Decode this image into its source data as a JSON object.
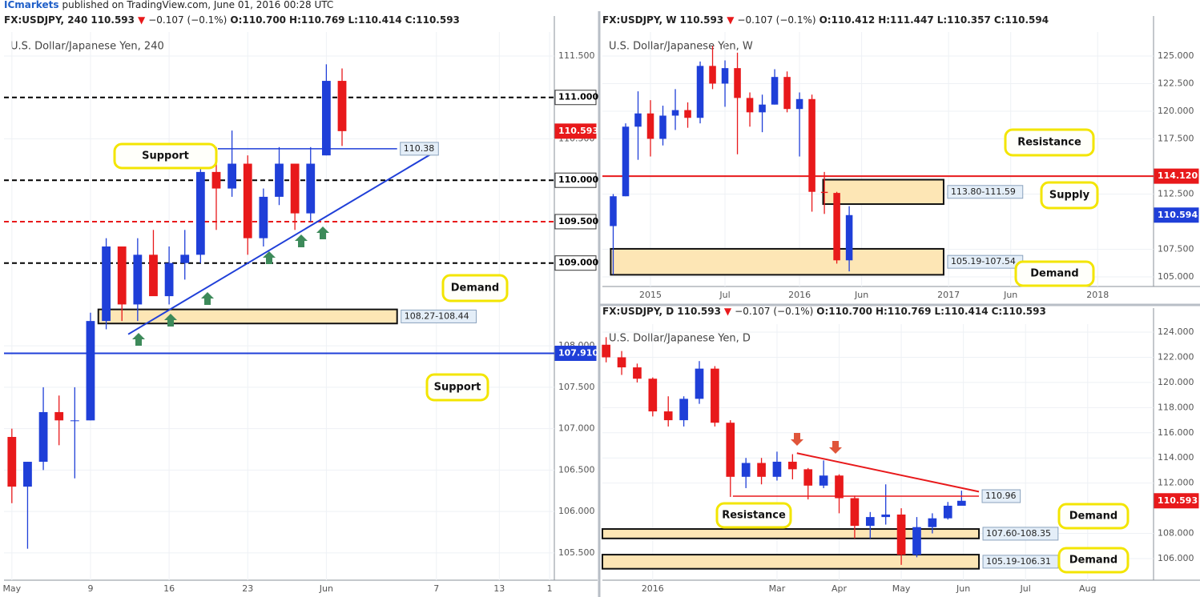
{
  "header": {
    "publisher": "ICmarkets",
    "published": "published on TradingView.com, June 01, 2016 00:28 UTC"
  },
  "chart_data": [
    {
      "type": "candlestick",
      "title": "U.S. Dollar/Japanese Yen, 240",
      "info": {
        "symbol": "FX:USDJPY, 240",
        "price": "110.593",
        "arrow": "▼",
        "change": "−0.107 (−0.1%)",
        "ohlc": [
          "O:110.700",
          "H:110.769",
          "L:110.414",
          "C:110.593"
        ]
      },
      "up_color": "#1f3fd8",
      "down_color": "#e8191b",
      "xlim": [
        -0.5,
        34.5
      ],
      "ylim": [
        105.17,
        111.79
      ],
      "xticks": [
        {
          "value": 0,
          "label": "May"
        },
        {
          "value": 5,
          "label": "9"
        },
        {
          "value": 10,
          "label": "16"
        },
        {
          "value": 15,
          "label": "23"
        },
        {
          "value": 20,
          "label": "Jun"
        },
        {
          "value": 27,
          "label": "7"
        },
        {
          "value": 31,
          "label": "13"
        },
        {
          "value": 34.2,
          "label": "1"
        }
      ],
      "yticks": [
        {
          "value": 111.5,
          "label": "111.500"
        },
        {
          "value": 110.5,
          "label": "110.500"
        },
        {
          "value": 108,
          "label": "108.000"
        },
        {
          "value": 107.5,
          "label": "107.500"
        },
        {
          "value": 107,
          "label": "107.000"
        },
        {
          "value": 106.5,
          "label": "106.500"
        },
        {
          "value": 106,
          "label": "106.000"
        },
        {
          "value": 105.5,
          "label": "105.500"
        }
      ],
      "grid": true,
      "candles": {
        "x": [
          0,
          1,
          2,
          3,
          4,
          5,
          6,
          7,
          8,
          9,
          10,
          11,
          12,
          13,
          14,
          15,
          16,
          17,
          18,
          19,
          20,
          21
        ],
        "open": [
          106.9,
          106.3,
          106.6,
          107.2,
          107.1,
          107.1,
          108.3,
          109.2,
          108.5,
          109.1,
          108.6,
          109.0,
          109.1,
          110.1,
          109.9,
          110.2,
          109.3,
          109.8,
          110.2,
          109.6,
          110.3,
          111.2
        ],
        "high": [
          107.0,
          106.6,
          107.5,
          107.4,
          107.5,
          108.4,
          109.3,
          109.2,
          109.3,
          109.4,
          109.2,
          109.4,
          110.3,
          110.4,
          110.6,
          110.3,
          109.9,
          110.4,
          110.2,
          110.4,
          111.4,
          111.35
        ],
        "low": [
          106.1,
          105.55,
          106.5,
          106.8,
          106.4,
          107.1,
          108.2,
          108.3,
          108.3,
          108.7,
          108.5,
          108.8,
          109.0,
          109.4,
          109.8,
          109.1,
          109.2,
          109.7,
          109.4,
          109.5,
          110.3,
          110.414
        ],
        "close": [
          106.3,
          106.6,
          107.2,
          107.1,
          107.1,
          108.3,
          109.2,
          108.5,
          109.1,
          108.6,
          109.0,
          109.1,
          110.1,
          109.9,
          110.2,
          109.3,
          109.8,
          110.2,
          109.6,
          110.2,
          111.2,
          110.593
        ]
      },
      "levels": [
        {
          "value": 111,
          "label": "111.000",
          "color": "#000000",
          "style": "dashed",
          "label_bg": "#ffffff",
          "label_color": "#000000"
        },
        {
          "value": 110.593,
          "label": "110.593",
          "color": "#e8191b",
          "style": "none",
          "label_bg": "#e8191b",
          "label_color": "#ffffff"
        },
        {
          "value": 110,
          "label": "110.000",
          "color": "#000000",
          "style": "dashed",
          "label_bg": "#ffffff",
          "label_color": "#000000"
        },
        {
          "value": 109.5,
          "label": "109.500",
          "color": "#e8191b",
          "style": "dashed",
          "label_bg": "#ffffff",
          "label_color": "#000000"
        },
        {
          "value": 109,
          "label": "109.000",
          "color": "#000000",
          "style": "dashed",
          "label_bg": "#ffffff",
          "label_color": "#000000"
        },
        {
          "value": 107.91,
          "label": "107.910",
          "color": "#1f3fd8",
          "style": "solid",
          "label_bg": "#1f3fd8",
          "label_color": "#ffffff"
        }
      ],
      "segments": [
        {
          "value": 110.38,
          "label": "110.38",
          "x": [
            13.1,
            24.5
          ],
          "color": "#1f3fd8"
        }
      ],
      "zones": [
        {
          "label": "108.27-108.44",
          "low": 108.27,
          "high": 108.44,
          "x": [
            5.5,
            24.5
          ]
        }
      ],
      "trendlines": [
        {
          "x": [
            7.4,
            27.05
          ],
          "y": [
            108.14,
            110.36
          ],
          "color": "#1f3fd8"
        }
      ],
      "callouts": [
        "Support",
        "Demand",
        "Support"
      ]
    },
    {
      "type": "candlestick",
      "title": "U.S. Dollar/Japanese Yen, W",
      "info": {
        "symbol": "FX:USDJPY, W",
        "price": "110.593",
        "arrow": "▼",
        "change": "−0.107 (−0.1%)",
        "ohlc": [
          "O:110.412",
          "H:111.447",
          "L:110.357",
          "C:110.594"
        ]
      },
      "up_color": "#1f3fd8",
      "down_color": "#e8191b",
      "xlim": [
        -3.87,
        40.5
      ],
      "ylim": [
        104.13,
        127.17
      ],
      "xticks": [
        {
          "value": 0,
          "label": "2015"
        },
        {
          "value": 6,
          "label": "Jul"
        },
        {
          "value": 12,
          "label": "2016"
        },
        {
          "value": 17,
          "label": "Jun"
        },
        {
          "value": 24,
          "label": "2017"
        },
        {
          "value": 29,
          "label": "Jun"
        },
        {
          "value": 36,
          "label": "2018"
        }
      ],
      "yticks": [
        {
          "value": 125,
          "label": "125.000"
        },
        {
          "value": 122.5,
          "label": "122.500"
        },
        {
          "value": 120,
          "label": "120.000"
        },
        {
          "value": 117.5,
          "label": "117.500"
        },
        {
          "value": 112.5,
          "label": "112.500"
        },
        {
          "value": 107.5,
          "label": "107.500"
        },
        {
          "value": 105,
          "label": "105.000"
        }
      ],
      "grid": true,
      "candles": {
        "x": [
          -3,
          -2,
          -1,
          0,
          1,
          2,
          3,
          4,
          5,
          6,
          7,
          8,
          9,
          10,
          11,
          12,
          13,
          14,
          15,
          16
        ],
        "open": [
          109.6,
          112.3,
          118.6,
          119.8,
          117.5,
          119.6,
          120.1,
          119.4,
          124.1,
          122.5,
          123.9,
          121.2,
          119.9,
          120.6,
          123.1,
          120.2,
          121.1,
          112.7,
          112.6,
          106.5
        ],
        "high": [
          112.5,
          118.9,
          121.8,
          121.0,
          120.5,
          122.0,
          120.8,
          124.5,
          125.9,
          124.6,
          125.3,
          121.7,
          121.5,
          123.8,
          123.6,
          121.7,
          121.5,
          114.5,
          112.7,
          111.4
        ],
        "low": [
          105.2,
          112.3,
          115.6,
          115.9,
          116.9,
          118.3,
          118.5,
          118.9,
          122.0,
          120.4,
          116.1,
          118.6,
          118.1,
          120.6,
          119.9,
          115.9,
          110.9,
          110.7,
          106.2,
          105.5
        ],
        "close": [
          112.3,
          118.6,
          119.8,
          117.5,
          119.6,
          120.1,
          119.4,
          124.1,
          122.5,
          123.9,
          121.2,
          119.9,
          120.6,
          123.1,
          120.2,
          121.1,
          112.7,
          112.6,
          106.5,
          110.594
        ]
      },
      "levels": [
        {
          "value": 114.12,
          "label": "114.120",
          "color": "#e8191b",
          "style": "solid",
          "label_bg": "#e8191b",
          "label_color": "#ffffff"
        },
        {
          "value": 110.594,
          "label": "110.594",
          "color": "#1f3fd8",
          "style": "none",
          "label_bg": "#1f3fd8",
          "label_color": "#ffffff"
        }
      ],
      "segments": [],
      "zones": [
        {
          "label": "113.80-111.59",
          "low": 111.59,
          "high": 113.8,
          "x": [
            13.9,
            23.6
          ]
        },
        {
          "label": "105.19-107.54",
          "low": 105.19,
          "high": 107.54,
          "x": [
            -3.2,
            23.6
          ]
        }
      ],
      "trendlines": [],
      "callouts": [
        "Resistance",
        "Supply",
        "Demand"
      ]
    },
    {
      "type": "candlestick",
      "title": "U.S. Dollar/Japanese Yen, D",
      "info": {
        "symbol": "FX:USDJPY, D",
        "price": "110.593",
        "arrow": "▼",
        "change": "−0.107 (−0.1%)",
        "ohlc": [
          "O:110.700",
          "H:110.769",
          "L:110.414",
          "C:110.593"
        ]
      },
      "up_color": "#1f3fd8",
      "down_color": "#e8191b",
      "xlim": [
        -0.81,
        8.06
      ],
      "ylim": [
        104.28,
        124.64
      ],
      "xticks": [
        {
          "value": 0,
          "label": "2016"
        },
        {
          "value": 2,
          "label": "Mar"
        },
        {
          "value": 3,
          "label": "Apr"
        },
        {
          "value": 4,
          "label": "May"
        },
        {
          "value": 5,
          "label": "Jun"
        },
        {
          "value": 6,
          "label": "Jul"
        },
        {
          "value": 7,
          "label": "Aug"
        }
      ],
      "yticks": [
        {
          "value": 124,
          "label": "124.000"
        },
        {
          "value": 122,
          "label": "122.000"
        },
        {
          "value": 120,
          "label": "120.000"
        },
        {
          "value": 118,
          "label": "118.000"
        },
        {
          "value": 116,
          "label": "116.000"
        },
        {
          "value": 114,
          "label": "114.000"
        },
        {
          "value": 112,
          "label": "112.000"
        },
        {
          "value": 108,
          "label": "108.000"
        },
        {
          "value": 106,
          "label": "106.000"
        }
      ],
      "grid": true,
      "candles": {
        "x": [
          -0.75,
          -0.5,
          -0.25,
          0,
          0.25,
          0.5,
          0.75,
          1,
          1.25,
          1.5,
          1.75,
          2,
          2.25,
          2.5,
          2.75,
          3,
          3.25,
          3.5,
          3.75,
          4,
          4.25,
          4.5,
          4.75,
          4.97
        ],
        "open": [
          123.0,
          122.0,
          121.2,
          120.3,
          117.7,
          117.0,
          118.7,
          121.1,
          116.8,
          112.5,
          113.6,
          112.5,
          113.7,
          113.1,
          111.8,
          112.6,
          110.8,
          108.6,
          109.3,
          109.5,
          106.3,
          108.5,
          109.2,
          110.2
        ],
        "high": [
          123.6,
          122.5,
          121.5,
          120.4,
          118.9,
          118.9,
          121.7,
          121.3,
          117.0,
          114.0,
          114.0,
          114.5,
          114.3,
          113.2,
          113.8,
          112.7,
          111.0,
          109.7,
          111.9,
          110.0,
          109.3,
          109.6,
          110.5,
          111.4
        ],
        "low": [
          121.6,
          120.6,
          120.0,
          117.3,
          116.5,
          116.5,
          118.3,
          116.5,
          110.9,
          111.6,
          111.9,
          112.2,
          112.3,
          110.7,
          111.6,
          109.6,
          107.6,
          107.6,
          108.7,
          105.5,
          106.1,
          108.0,
          109.1,
          110.3
        ],
        "close": [
          122.0,
          121.2,
          120.3,
          117.7,
          117.0,
          118.7,
          121.1,
          116.8,
          112.5,
          113.6,
          112.5,
          113.7,
          113.1,
          111.8,
          112.6,
          110.8,
          108.6,
          109.3,
          109.5,
          106.3,
          108.5,
          109.2,
          110.2,
          110.593
        ]
      },
      "levels": [
        {
          "value": 110.593,
          "label": "110.593",
          "color": "#e8191b",
          "style": "none",
          "label_bg": "#e8191b",
          "label_color": "#ffffff"
        }
      ],
      "segments": [
        {
          "value": 110.96,
          "label": "110.96",
          "x": [
            1.29,
            5.25
          ],
          "color": "#e8191b"
        }
      ],
      "zones": [
        {
          "label": "107.60-108.35",
          "low": 107.6,
          "high": 108.35,
          "x": [
            -0.81,
            5.25
          ]
        },
        {
          "label": "105.19-106.31",
          "low": 105.19,
          "high": 106.31,
          "x": [
            -0.81,
            5.25
          ]
        }
      ],
      "trendlines": [
        {
          "x": [
            2.32,
            5.25
          ],
          "y": [
            114.38,
            111.32
          ],
          "color": "#e8191b"
        }
      ],
      "callouts": [
        "Resistance",
        "Demand",
        "Demand"
      ]
    }
  ]
}
